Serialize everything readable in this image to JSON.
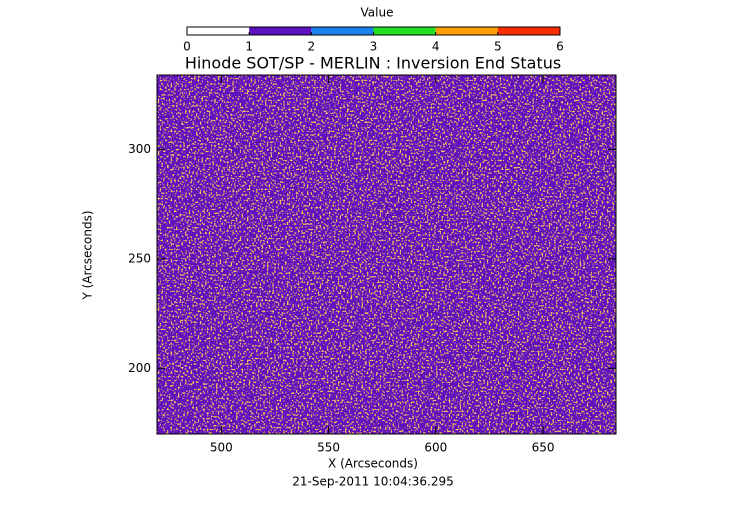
{
  "chart_data": {
    "type": "heatmap",
    "title": "Hinode SOT/SP - MERLIN : Inversion End Status",
    "x_label": "X (Arcseconds)",
    "y_label": "Y (Arcseconds)",
    "date": "21-Sep-2011 10:04:36.295",
    "xlim": [
      470,
      684
    ],
    "ylim": [
      170,
      334
    ],
    "xticks": [
      500,
      550,
      600,
      650
    ],
    "yticks": [
      200,
      250,
      300
    ],
    "colorbar": {
      "title": "Value",
      "lim": [
        0,
        6
      ],
      "ticks": [
        0,
        1,
        2,
        3,
        4,
        5,
        6
      ],
      "colors": [
        "#ffffff",
        "#5c10c0",
        "#1a82ea",
        "#22e022",
        "#ffa000",
        "#ff2c00"
      ]
    }
  }
}
